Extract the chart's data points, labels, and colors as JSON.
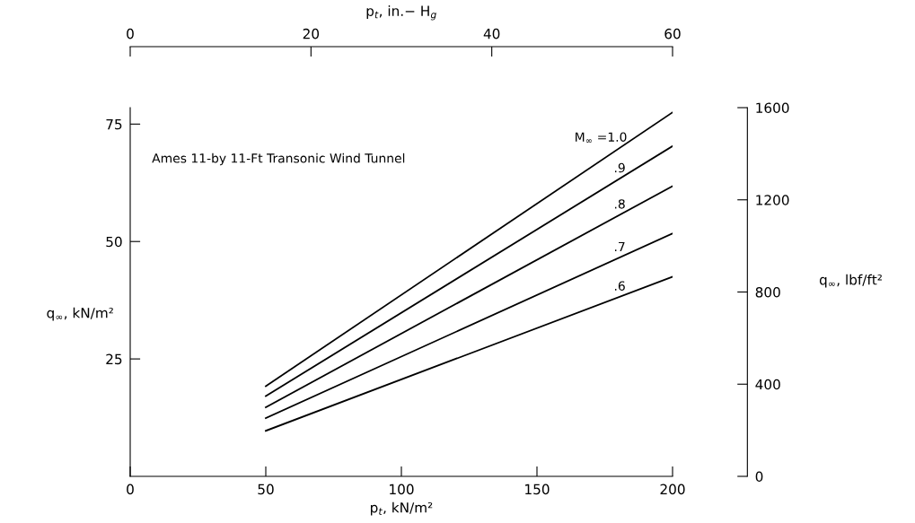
{
  "chart_data": {
    "type": "line",
    "xlabel": "p$_{t}$, kN/m²",
    "ylabel": "q$_{∞}$, kN/m²",
    "y2label": "q$_{∞}$, lbf/ft²",
    "x2label": "p$_{t}$, in.− H$_{g}$",
    "annotations": [
      "Ames 11-by 11-Ft Transonic Wind Tunnel"
    ],
    "x": [
      50,
      200
    ],
    "series": [
      {
        "name": "M$_{∞}$ =1.0",
        "color": "#000000",
        "values": [
          19.2,
          77.5
        ]
      },
      {
        "name": ".9",
        "color": "#000000",
        "values": [
          17.1,
          70.3
        ]
      },
      {
        "name": ".8",
        "color": "#000000",
        "values": [
          14.7,
          61.8
        ]
      },
      {
        "name": ".7",
        "color": "#000000",
        "values": [
          12.4,
          51.7
        ]
      },
      {
        "name": ".6",
        "color": "#000000",
        "values": [
          9.7,
          42.5
        ]
      }
    ],
    "xlim": [
      0,
      200
    ],
    "xticks": [
      0,
      50,
      100,
      150,
      200
    ],
    "ylim": [
      0,
      78.5
    ],
    "yticks": [
      25,
      50,
      75
    ],
    "y2lim": [
      0,
      1600
    ],
    "y2ticks": [
      0,
      400,
      800,
      1200,
      1600
    ],
    "x2lim": [
      0,
      60
    ],
    "x2ticks": [
      0,
      20,
      40,
      60
    ],
    "grid": false,
    "marker": "none",
    "line_style": "solid"
  }
}
